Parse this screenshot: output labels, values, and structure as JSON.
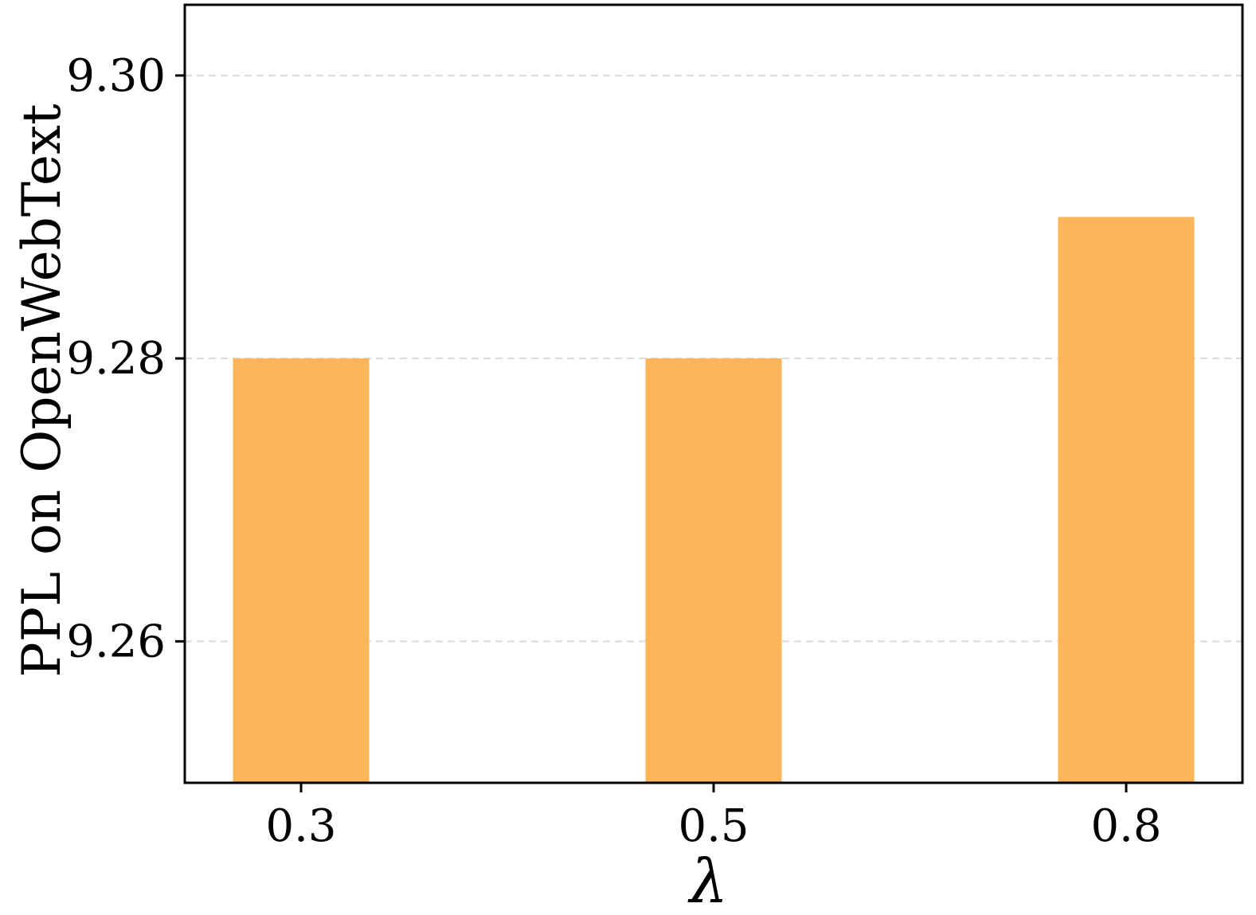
{
  "chart_data": {
    "type": "bar",
    "categories": [
      "0.3",
      "0.5",
      "0.8"
    ],
    "values": [
      9.28,
      9.28,
      9.29
    ],
    "xlabel": "λ",
    "ylabel": "PPL on OpenWebText",
    "ylim": [
      9.25,
      9.305
    ],
    "yticks": [
      9.26,
      9.28,
      9.3
    ],
    "ytick_labels": [
      "9.26",
      "9.28",
      "9.30"
    ],
    "grid": "horizontal dashed",
    "colors": {
      "bar": "#FDB55A",
      "grid": "#d9d9d9",
      "axis": "#000000"
    }
  }
}
